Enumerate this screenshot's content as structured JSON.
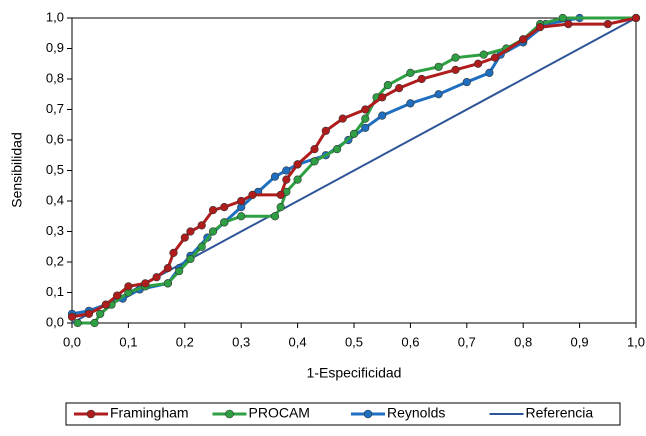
{
  "chart_data": {
    "type": "line",
    "x_label": "1-Especificidad",
    "y_label": "Sensibilidad",
    "xlim": [
      0,
      1
    ],
    "ylim": [
      0,
      1
    ],
    "xticks": [
      {
        "value": 0,
        "label": "0,0"
      },
      {
        "value": 0.1,
        "label": "0,1"
      },
      {
        "value": 0.2,
        "label": "0,2"
      },
      {
        "value": 0.3,
        "label": "0,3"
      },
      {
        "value": 0.4,
        "label": "0,4"
      },
      {
        "value": 0.5,
        "label": "0,5"
      },
      {
        "value": 0.6,
        "label": "0,6"
      },
      {
        "value": 0.7,
        "label": "0,7"
      },
      {
        "value": 0.8,
        "label": "0,8"
      },
      {
        "value": 0.9,
        "label": "0,9"
      },
      {
        "value": 1,
        "label": "1,0"
      }
    ],
    "yticks": [
      {
        "value": 0,
        "label": "0,0"
      },
      {
        "value": 0.1,
        "label": "0,1"
      },
      {
        "value": 0.2,
        "label": "0,2"
      },
      {
        "value": 0.3,
        "label": "0,3"
      },
      {
        "value": 0.4,
        "label": "0,4"
      },
      {
        "value": 0.5,
        "label": "0,5"
      },
      {
        "value": 0.6,
        "label": "0,6"
      },
      {
        "value": 0.7,
        "label": "0,7"
      },
      {
        "value": 0.8,
        "label": "0,8"
      },
      {
        "value": 0.9,
        "label": "0,9"
      },
      {
        "value": 1,
        "label": "1,0"
      }
    ],
    "legend": "bottom",
    "series": [
      {
        "name": "Framingham",
        "color": "#b01c1c",
        "marker": true,
        "x": [
          0,
          0.03,
          0.06,
          0.08,
          0.1,
          0.13,
          0.15,
          0.17,
          0.18,
          0.2,
          0.21,
          0.23,
          0.25,
          0.27,
          0.3,
          0.32,
          0.37,
          0.38,
          0.4,
          0.43,
          0.45,
          0.48,
          0.52,
          0.55,
          0.58,
          0.62,
          0.68,
          0.72,
          0.75,
          0.8,
          0.83,
          0.88,
          0.95,
          1
        ],
        "values": [
          0.02,
          0.03,
          0.06,
          0.09,
          0.12,
          0.13,
          0.15,
          0.18,
          0.23,
          0.28,
          0.3,
          0.32,
          0.37,
          0.38,
          0.4,
          0.42,
          0.42,
          0.47,
          0.52,
          0.57,
          0.63,
          0.67,
          0.7,
          0.74,
          0.77,
          0.8,
          0.83,
          0.85,
          0.87,
          0.93,
          0.97,
          0.98,
          0.98,
          1
        ]
      },
      {
        "name": "PROCAM",
        "color": "#2ea043",
        "marker": true,
        "x": [
          0.01,
          0.04,
          0.05,
          0.07,
          0.1,
          0.13,
          0.17,
          0.19,
          0.21,
          0.23,
          0.25,
          0.27,
          0.3,
          0.36,
          0.37,
          0.38,
          0.4,
          0.43,
          0.47,
          0.5,
          0.52,
          0.54,
          0.56,
          0.6,
          0.65,
          0.68,
          0.73,
          0.77,
          0.8,
          0.83,
          0.87,
          1
        ],
        "values": [
          0,
          0,
          0.03,
          0.06,
          0.1,
          0.12,
          0.13,
          0.17,
          0.21,
          0.25,
          0.3,
          0.33,
          0.35,
          0.35,
          0.38,
          0.43,
          0.47,
          0.53,
          0.57,
          0.62,
          0.67,
          0.74,
          0.78,
          0.82,
          0.84,
          0.87,
          0.88,
          0.9,
          0.93,
          0.98,
          1,
          1
        ]
      },
      {
        "name": "Reynolds",
        "color": "#1f6fc0",
        "marker": true,
        "x": [
          0,
          0.03,
          0.06,
          0.09,
          0.12,
          0.17,
          0.19,
          0.21,
          0.24,
          0.27,
          0.3,
          0.33,
          0.36,
          0.38,
          0.4,
          0.45,
          0.49,
          0.52,
          0.55,
          0.6,
          0.65,
          0.7,
          0.74,
          0.76,
          0.8,
          0.84,
          0.9,
          1
        ],
        "values": [
          0.03,
          0.04,
          0.06,
          0.08,
          0.11,
          0.13,
          0.18,
          0.22,
          0.28,
          0.33,
          0.38,
          0.43,
          0.48,
          0.5,
          0.52,
          0.55,
          0.6,
          0.64,
          0.68,
          0.72,
          0.75,
          0.79,
          0.82,
          0.88,
          0.92,
          0.98,
          1,
          1
        ]
      },
      {
        "name": "Referencia",
        "color": "#2e5597",
        "marker": false,
        "x": [
          0,
          1
        ],
        "values": [
          0,
          1
        ]
      }
    ]
  }
}
